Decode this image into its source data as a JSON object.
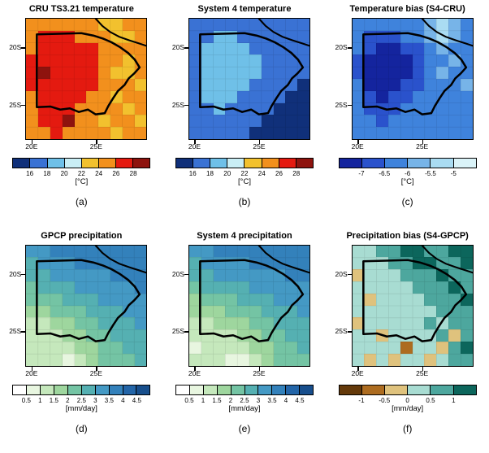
{
  "palettes": {
    "temp": {
      "thresholds": [
        16,
        18,
        20,
        22,
        24,
        26,
        28
      ],
      "colors": [
        "#10307a",
        "#3a72d4",
        "#6fc0e8",
        "#c9eef5",
        "#f2c12e",
        "#f2901d",
        "#e41a10",
        "#8e130e"
      ]
    },
    "temp_bias": {
      "thresholds": [
        -7,
        -6.5,
        -6,
        -5.5,
        -5
      ],
      "colors": [
        "#14249e",
        "#2a52cc",
        "#3f83dc",
        "#77b4e8",
        "#aadcf2",
        "#daf3f8"
      ]
    },
    "precip": {
      "thresholds": [
        0.5,
        1,
        1.5,
        2,
        2.5,
        3,
        3.5,
        4,
        4.5
      ],
      "colors": [
        "#ffffff",
        "#e8f6e0",
        "#c5e8bc",
        "#9ed69e",
        "#74c4a4",
        "#55b0b2",
        "#4499c4",
        "#3381bb",
        "#2365a8",
        "#174e8c"
      ]
    },
    "precip_bias": {
      "thresholds": [
        -1,
        -0.5,
        0,
        0.5,
        1
      ],
      "colors": [
        "#64390a",
        "#ad6c20",
        "#dfc27d",
        "#a8dcd2",
        "#4da79e",
        "#0c665c"
      ]
    }
  },
  "chart_data": [
    {
      "id": "a",
      "type": "heatmap",
      "title": "CRU TS3.21 temperature",
      "letter": "(a)",
      "unit": "[°C]",
      "palette": "temp",
      "colorbar_ticks": [
        "16",
        "18",
        "20",
        "22",
        "24",
        "26",
        "28"
      ],
      "lat_ticks": [
        "20S",
        "25S"
      ],
      "lon_ticks": [
        "20E",
        "25E"
      ],
      "values": [
        [
          25,
          25,
          25,
          25,
          25,
          25,
          23,
          23,
          25,
          25
        ],
        [
          25,
          27,
          27,
          27,
          25,
          25,
          25,
          23,
          23,
          25
        ],
        [
          25,
          27,
          27,
          27,
          27,
          27,
          25,
          25,
          25,
          25
        ],
        [
          27,
          27,
          27,
          27,
          27,
          27,
          25,
          25,
          23,
          25
        ],
        [
          27,
          29,
          27,
          27,
          27,
          27,
          25,
          23,
          23,
          25
        ],
        [
          27,
          27,
          27,
          27,
          27,
          27,
          25,
          25,
          25,
          23
        ],
        [
          25,
          27,
          27,
          27,
          27,
          25,
          25,
          23,
          25,
          25
        ],
        [
          25,
          27,
          27,
          27,
          25,
          25,
          25,
          25,
          23,
          25
        ],
        [
          25,
          27,
          27,
          29,
          25,
          25,
          23,
          25,
          25,
          23
        ],
        [
          25,
          25,
          27,
          25,
          25,
          25,
          25,
          23,
          25,
          25
        ]
      ]
    },
    {
      "id": "b",
      "type": "heatmap",
      "title": "System 4 temperature",
      "letter": "(b)",
      "unit": "[°C]",
      "palette": "temp",
      "colorbar_ticks": [
        "16",
        "18",
        "20",
        "22",
        "24",
        "26",
        "28"
      ],
      "lat_ticks": [
        "20S",
        "25S"
      ],
      "lon_ticks": [
        "20E",
        "25E"
      ],
      "values": [
        [
          17,
          17,
          17,
          17,
          17,
          17,
          17,
          17,
          17,
          17
        ],
        [
          17,
          17,
          19,
          19,
          17,
          17,
          17,
          17,
          17,
          17
        ],
        [
          17,
          19,
          19,
          19,
          19,
          17,
          17,
          17,
          17,
          17
        ],
        [
          17,
          19,
          19,
          19,
          19,
          19,
          17,
          17,
          17,
          17
        ],
        [
          17,
          19,
          19,
          19,
          19,
          19,
          17,
          17,
          17,
          17
        ],
        [
          17,
          19,
          19,
          19,
          19,
          17,
          17,
          17,
          17,
          15
        ],
        [
          17,
          19,
          19,
          19,
          17,
          17,
          17,
          17,
          15,
          15
        ],
        [
          17,
          17,
          19,
          17,
          17,
          17,
          17,
          15,
          15,
          15
        ],
        [
          17,
          17,
          17,
          17,
          17,
          17,
          15,
          15,
          15,
          15
        ],
        [
          17,
          17,
          17,
          17,
          17,
          15,
          15,
          15,
          15,
          15
        ]
      ]
    },
    {
      "id": "c",
      "type": "heatmap",
      "title": "Temperature bias (S4-CRU)",
      "letter": "(c)",
      "unit": "[°C]",
      "palette": "temp_bias",
      "colorbar_ticks": [
        "-7",
        "-6.5",
        "-6",
        "-5.5",
        "-5"
      ],
      "lat_ticks": [
        "20S",
        "25S"
      ],
      "lon_ticks": [
        "20E",
        "25E"
      ],
      "values": [
        [
          -6.2,
          -6.2,
          -6.2,
          -6.2,
          -6.2,
          -6.2,
          -5.7,
          -5.2,
          -5.7,
          -6.2
        ],
        [
          -6.2,
          -6.7,
          -6.7,
          -6.7,
          -6.2,
          -6.2,
          -5.7,
          -5.2,
          -5.7,
          -6.2
        ],
        [
          -6.2,
          -6.7,
          -7.2,
          -7.2,
          -6.7,
          -6.7,
          -6.2,
          -5.7,
          -6.2,
          -6.2
        ],
        [
          -6.7,
          -7.2,
          -7.2,
          -7.2,
          -7.2,
          -6.7,
          -6.2,
          -6.2,
          -5.7,
          -6.2
        ],
        [
          -6.7,
          -7.2,
          -7.2,
          -7.2,
          -7.2,
          -6.7,
          -6.2,
          -5.7,
          -6.2,
          -6.2
        ],
        [
          -6.2,
          -7.2,
          -7.2,
          -7.2,
          -6.7,
          -6.7,
          -6.2,
          -6.2,
          -6.2,
          -5.7
        ],
        [
          -6.2,
          -6.7,
          -7.2,
          -6.7,
          -6.7,
          -6.2,
          -6.2,
          -6.2,
          -6.2,
          -6.2
        ],
        [
          -6.2,
          -6.7,
          -6.7,
          -6.7,
          -6.2,
          -6.2,
          -6.2,
          -6.2,
          -6.2,
          -6.2
        ],
        [
          -6.2,
          -6.2,
          -6.7,
          -6.2,
          -6.2,
          -6.2,
          -6.2,
          -6.2,
          -6.2,
          -6.2
        ],
        [
          -6.2,
          -6.2,
          -6.2,
          -6.2,
          -6.2,
          -6.2,
          -6.2,
          -6.2,
          -6.2,
          -6.2
        ]
      ]
    },
    {
      "id": "d",
      "type": "heatmap",
      "title": "GPCP precipitation",
      "letter": "(d)",
      "unit": "[mm/day]",
      "palette": "precip",
      "colorbar_ticks": [
        "0.5",
        "1",
        "1.5",
        "2",
        "2.5",
        "3",
        "3.5",
        "4",
        "4.5"
      ],
      "lat_ticks": [
        "20S",
        "25S"
      ],
      "lon_ticks": [
        "20E",
        "25E"
      ],
      "values": [
        [
          3.2,
          3.2,
          3.7,
          3.7,
          3.7,
          3.7,
          3.7,
          3.7,
          3.7,
          3.7
        ],
        [
          2.7,
          3.2,
          3.2,
          3.2,
          3.7,
          3.7,
          3.7,
          3.7,
          3.7,
          3.7
        ],
        [
          2.7,
          2.7,
          3.2,
          3.2,
          3.2,
          3.2,
          3.2,
          3.7,
          3.7,
          3.7
        ],
        [
          2.2,
          2.7,
          2.7,
          2.7,
          3.2,
          3.2,
          3.2,
          3.2,
          3.2,
          3.7
        ],
        [
          2.2,
          2.2,
          2.2,
          2.7,
          2.7,
          2.7,
          3.2,
          3.2,
          3.2,
          3.2
        ],
        [
          1.7,
          1.7,
          2.2,
          2.2,
          2.2,
          2.7,
          2.7,
          2.7,
          3.2,
          3.2
        ],
        [
          1.2,
          1.2,
          1.7,
          1.7,
          2.2,
          2.2,
          2.7,
          2.7,
          2.7,
          3.2
        ],
        [
          1.2,
          1.2,
          1.2,
          1.7,
          1.7,
          2.2,
          2.2,
          2.7,
          2.7,
          2.7
        ],
        [
          1.2,
          1.2,
          1.2,
          1.2,
          1.7,
          1.7,
          2.2,
          2.2,
          2.7,
          2.7
        ],
        [
          1.2,
          1.2,
          1.2,
          0.7,
          1.2,
          1.7,
          2.2,
          2.2,
          2.2,
          2.7
        ]
      ]
    },
    {
      "id": "e",
      "type": "heatmap",
      "title": "System 4 precipitation",
      "letter": "(e)",
      "unit": "[mm/day]",
      "palette": "precip",
      "colorbar_ticks": [
        "0.5",
        "1",
        "1.5",
        "2",
        "2.5",
        "3",
        "3.5",
        "4",
        "4.5"
      ],
      "lat_ticks": [
        "20S",
        "25S"
      ],
      "lon_ticks": [
        "20E",
        "25E"
      ],
      "values": [
        [
          3.2,
          3.2,
          3.7,
          3.7,
          3.7,
          3.7,
          3.7,
          3.7,
          3.7,
          3.7
        ],
        [
          2.7,
          3.2,
          3.2,
          3.2,
          3.2,
          3.7,
          3.7,
          3.7,
          3.7,
          3.7
        ],
        [
          2.7,
          2.7,
          3.2,
          3.2,
          3.2,
          3.2,
          3.2,
          3.2,
          3.7,
          3.7
        ],
        [
          2.2,
          2.7,
          2.7,
          2.7,
          2.7,
          3.2,
          3.2,
          3.2,
          3.2,
          3.2
        ],
        [
          1.7,
          2.2,
          2.2,
          2.2,
          2.7,
          2.7,
          2.7,
          3.2,
          3.2,
          3.2
        ],
        [
          1.7,
          1.7,
          1.7,
          2.2,
          2.2,
          2.2,
          2.7,
          2.7,
          2.7,
          3.2
        ],
        [
          1.2,
          1.2,
          1.7,
          1.7,
          1.7,
          2.2,
          2.2,
          2.7,
          2.7,
          2.7
        ],
        [
          1.2,
          1.2,
          1.2,
          1.2,
          1.7,
          1.7,
          2.2,
          2.2,
          2.7,
          2.7
        ],
        [
          0.7,
          1.2,
          1.2,
          1.2,
          1.2,
          1.7,
          1.7,
          2.2,
          2.2,
          2.7
        ],
        [
          1.2,
          1.2,
          1.2,
          0.7,
          0.7,
          1.2,
          1.7,
          2.2,
          2.2,
          2.2
        ]
      ]
    },
    {
      "id": "f",
      "type": "heatmap",
      "title": "Precipitation bias (S4-GPCP)",
      "letter": "(f)",
      "unit": "[mm/day]",
      "palette": "precip_bias",
      "colorbar_ticks": [
        "-1",
        "-0.5",
        "0",
        "0.5",
        "1"
      ],
      "lat_ticks": [
        "20S",
        "25S"
      ],
      "lon_ticks": [
        "20E",
        "25E"
      ],
      "values": [
        [
          0.3,
          0.3,
          0.7,
          0.7,
          1.2,
          1.2,
          0.7,
          0.7,
          1.2,
          1.2
        ],
        [
          0.3,
          0.3,
          0.3,
          0.7,
          0.7,
          1.2,
          1.2,
          0.7,
          0.7,
          1.2
        ],
        [
          -0.2,
          0.3,
          0.3,
          0.3,
          0.7,
          0.7,
          0.7,
          1.2,
          0.7,
          0.7
        ],
        [
          0.3,
          0.3,
          0.3,
          0.3,
          0.3,
          0.7,
          0.7,
          0.7,
          1.2,
          0.7
        ],
        [
          0.3,
          -0.2,
          0.3,
          0.3,
          0.3,
          0.3,
          0.7,
          0.7,
          0.7,
          1.2
        ],
        [
          0.3,
          0.3,
          0.3,
          0.3,
          0.3,
          0.3,
          0.3,
          0.7,
          0.7,
          0.7
        ],
        [
          -0.2,
          0.3,
          0.3,
          0.3,
          0.3,
          0.3,
          0.7,
          0.3,
          0.7,
          0.7
        ],
        [
          0.3,
          0.3,
          -0.2,
          0.3,
          0.3,
          0.3,
          0.3,
          0.7,
          -0.2,
          0.7
        ],
        [
          0.3,
          0.3,
          0.3,
          0.3,
          -0.7,
          0.3,
          0.3,
          -0.2,
          0.7,
          1.2
        ],
        [
          0.3,
          -0.2,
          0.3,
          -0.2,
          0.3,
          0.3,
          -0.2,
          0.3,
          0.7,
          0.7
        ]
      ]
    }
  ]
}
